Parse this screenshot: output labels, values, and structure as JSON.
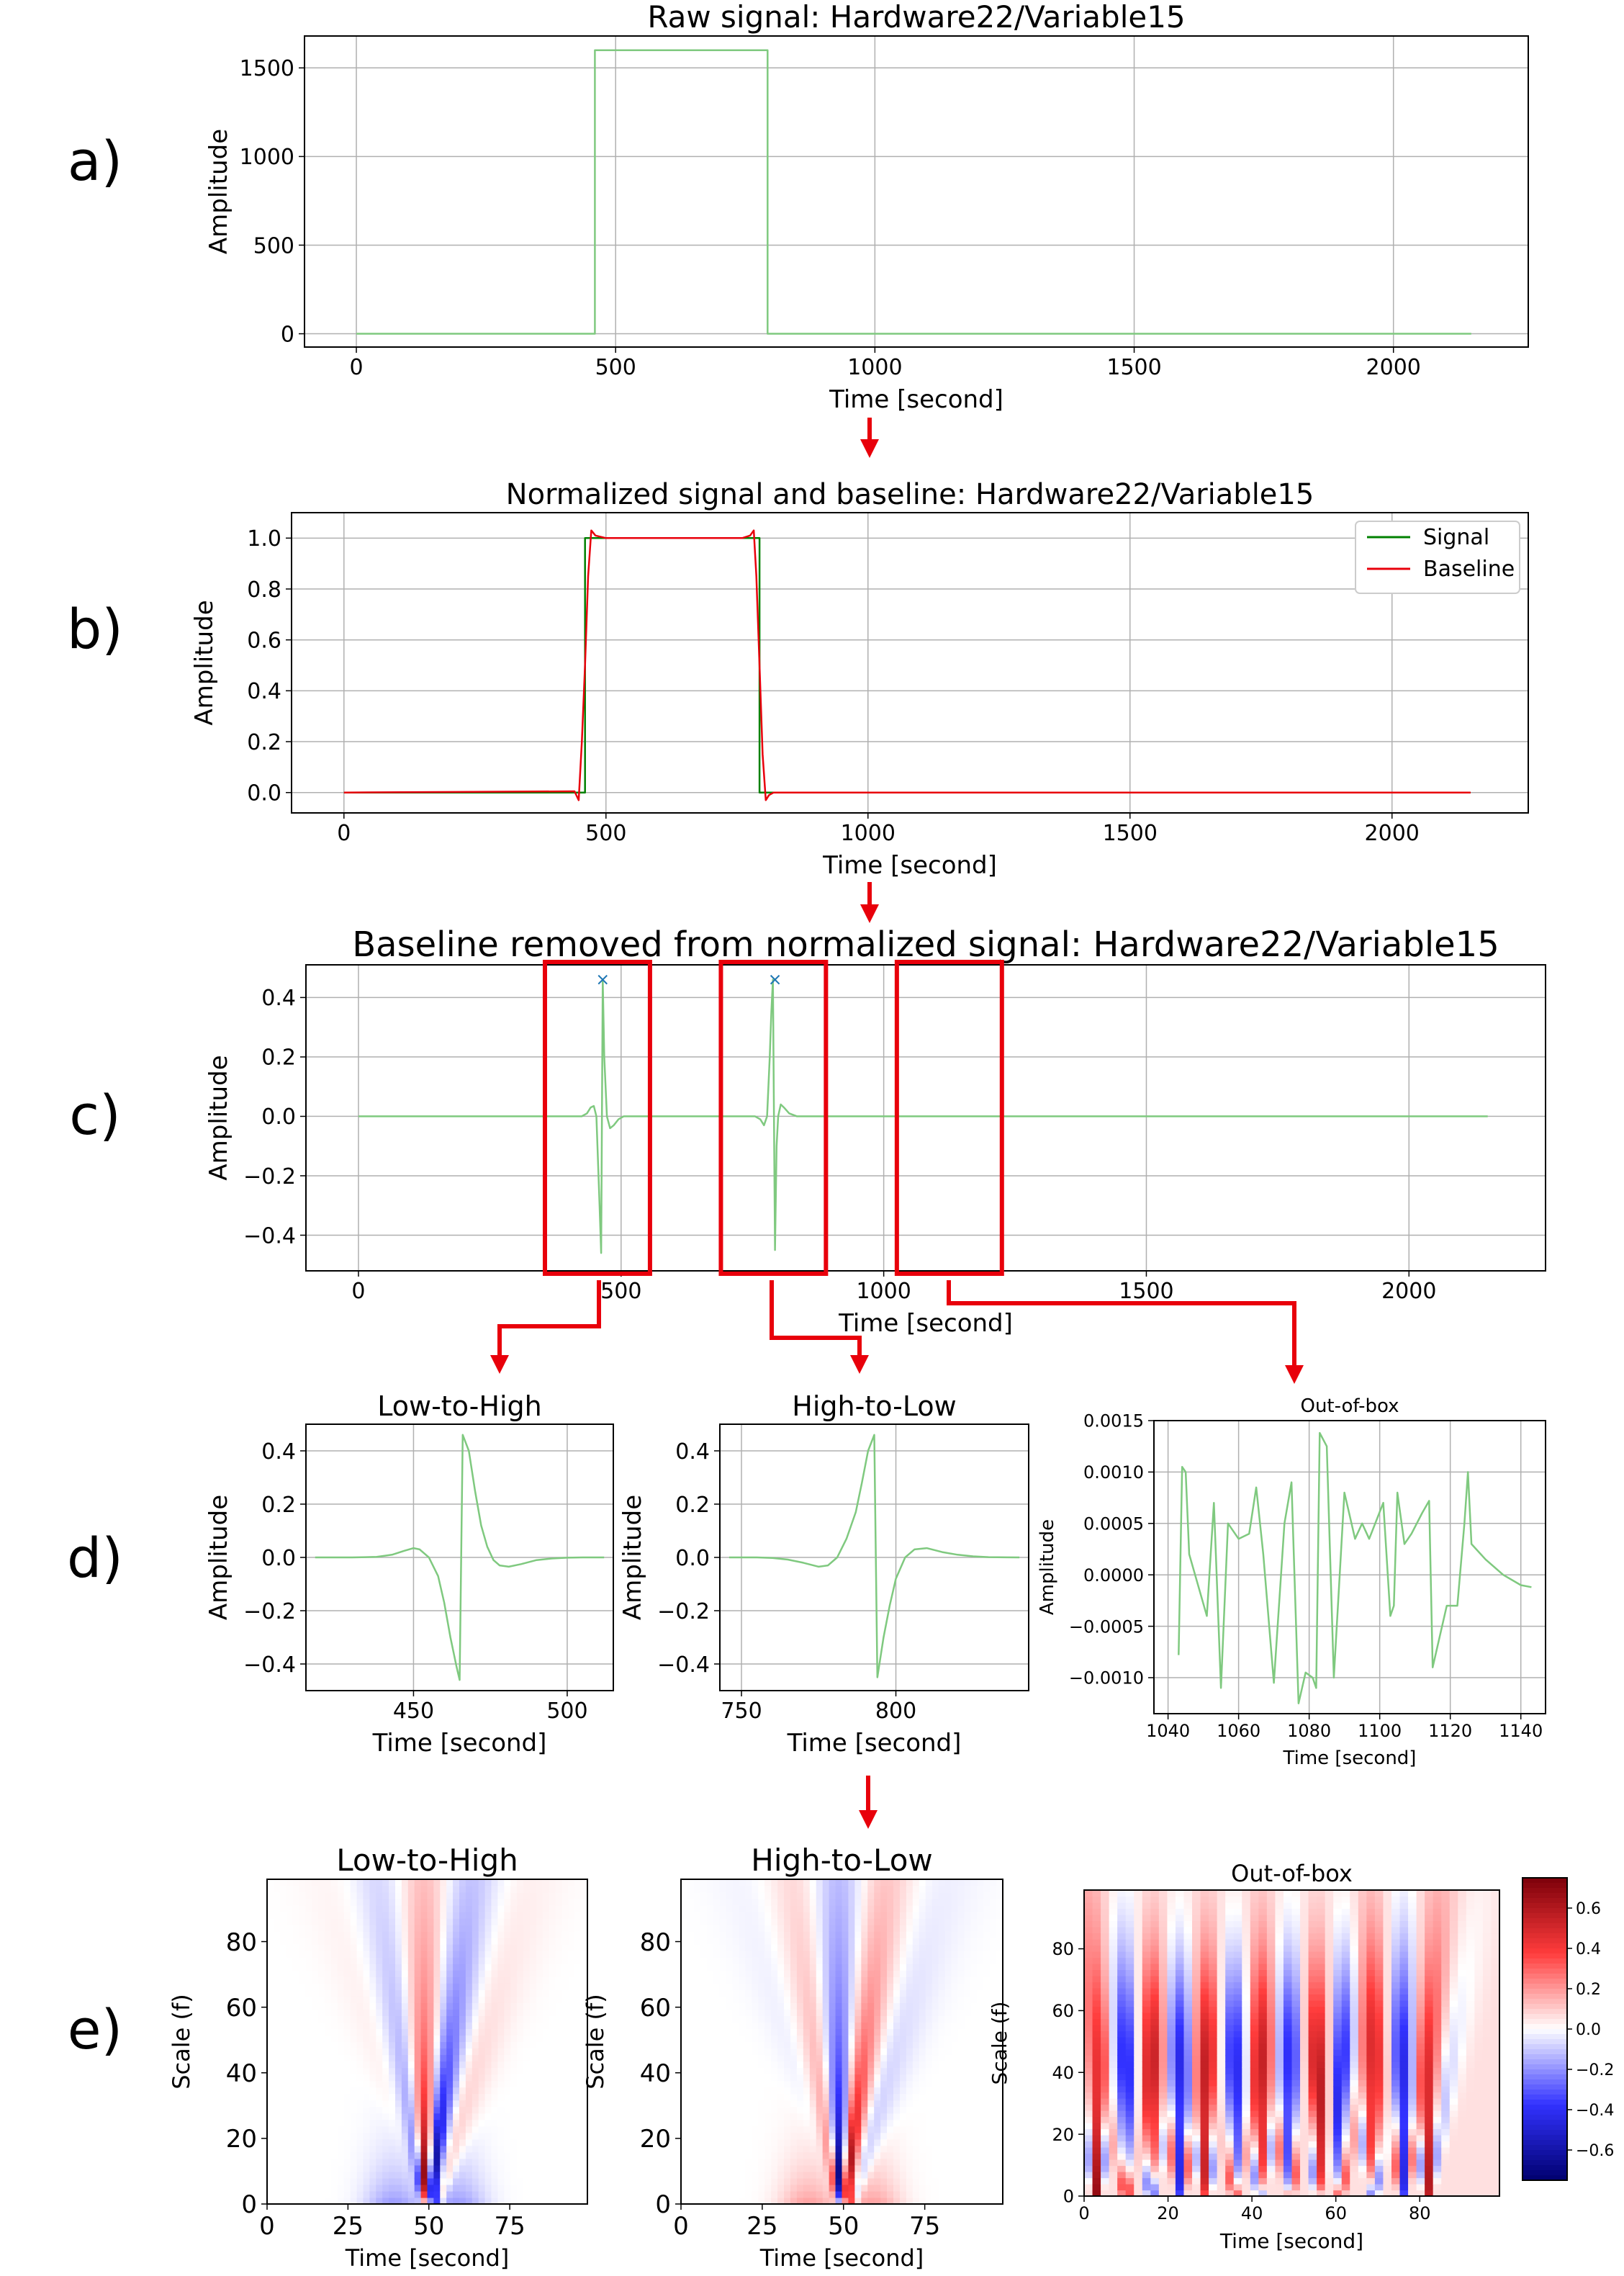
{
  "panel_labels": [
    "a)",
    "b)",
    "c)",
    "d)",
    "e)"
  ],
  "colors": {
    "signal_light": "#7fc97f",
    "signal_dark": "#008000",
    "baseline": "#e8000b",
    "annotation": "#e8000b",
    "peak_marker": "#1f77b4",
    "grid": "#b0b0b0"
  },
  "chart_data": [
    {
      "id": "a",
      "type": "line",
      "title": "Raw signal: Hardware22/Variable15",
      "xlabel": "Time [second]",
      "ylabel": "Amplitude",
      "xlim": [
        -100,
        2260
      ],
      "ylim": [
        -75,
        1680
      ],
      "xticks": [
        0,
        500,
        1000,
        1500,
        2000
      ],
      "yticks": [
        0,
        500,
        1000,
        1500
      ],
      "grid": true,
      "series": [
        {
          "color": "#7fc97f",
          "x": [
            0,
            460,
            460,
            793,
            793,
            2150
          ],
          "y": [
            0,
            0,
            1600,
            1600,
            0,
            0
          ]
        }
      ]
    },
    {
      "id": "b",
      "type": "line",
      "title": "Normalized signal and baseline: Hardware22/Variable15",
      "xlabel": "Time [second]",
      "ylabel": "Amplitude",
      "xlim": [
        -100,
        2260
      ],
      "ylim": [
        -0.08,
        1.1
      ],
      "xticks": [
        0,
        500,
        1000,
        1500,
        2000
      ],
      "yticks": [
        0.0,
        0.2,
        0.4,
        0.6,
        0.8,
        1.0
      ],
      "grid": true,
      "legend": "top-right",
      "series": [
        {
          "name": "Signal",
          "color": "#008000",
          "x": [
            0,
            460,
            460,
            793,
            793,
            2150
          ],
          "y": [
            0,
            0,
            1,
            1,
            0,
            0
          ]
        },
        {
          "name": "Baseline",
          "color": "#e8000b",
          "x": [
            0,
            440,
            448,
            454,
            460,
            466,
            472,
            480,
            500,
            760,
            775,
            782,
            787,
            793,
            799,
            805,
            811,
            820,
            2150
          ],
          "y": [
            0,
            0.005,
            -0.03,
            0.2,
            0.5,
            0.85,
            1.03,
            1.01,
            1.0,
            1.0,
            1.01,
            1.03,
            0.85,
            0.5,
            0.15,
            -0.03,
            -0.01,
            0.0,
            0.0
          ]
        }
      ]
    },
    {
      "id": "c",
      "type": "line",
      "title": "Baseline removed from normalized signal: Hardware22/Variable15",
      "xlabel": "Time [second]",
      "ylabel": "Amplitude",
      "xlim": [
        -100,
        2260
      ],
      "ylim": [
        -0.52,
        0.51
      ],
      "xticks": [
        0,
        500,
        1000,
        1500,
        2000
      ],
      "yticks": [
        -0.4,
        -0.2,
        0.0,
        0.2,
        0.4
      ],
      "grid": true,
      "peaks": {
        "x": [
          465,
          793
        ],
        "y": [
          0.46,
          0.46
        ]
      },
      "boxes": [
        [
          355,
          555
        ],
        [
          690,
          890
        ],
        [
          1025,
          1225
        ]
      ],
      "series": [
        {
          "color": "#7fc97f",
          "x": [
            0,
            425,
            435,
            442,
            448,
            453,
            459,
            462,
            465,
            468,
            473,
            479,
            486,
            495,
            505,
            755,
            765,
            772,
            778,
            783,
            786,
            789,
            793,
            796,
            799,
            804,
            810,
            820,
            835,
            2150
          ],
          "y": [
            0,
            0,
            0.01,
            0.03,
            0.035,
            0.0,
            -0.3,
            -0.46,
            0.46,
            0.2,
            0.0,
            -0.04,
            -0.03,
            -0.01,
            0,
            0,
            -0.01,
            -0.03,
            0.0,
            0.2,
            0.35,
            0.46,
            -0.45,
            -0.1,
            0.0,
            0.04,
            0.03,
            0.01,
            0,
            0
          ]
        }
      ]
    },
    {
      "id": "d1",
      "type": "line",
      "title": "Low-to-High",
      "xlabel": "Time [second]",
      "ylabel": "Amplitude",
      "xlim": [
        415,
        515
      ],
      "ylim": [
        -0.5,
        0.5
      ],
      "xticks": [
        450,
        500
      ],
      "yticks": [
        -0.4,
        -0.2,
        0.0,
        0.2,
        0.4
      ],
      "grid": true,
      "series": [
        {
          "color": "#7fc97f",
          "x": [
            418,
            430,
            438,
            443,
            447,
            450,
            452,
            455,
            458,
            460,
            462,
            464,
            465,
            466,
            468,
            470,
            472,
            474,
            476,
            478,
            481,
            485,
            490,
            495,
            500,
            505,
            512
          ],
          "y": [
            0,
            0,
            0.002,
            0.01,
            0.025,
            0.035,
            0.03,
            0.0,
            -0.07,
            -0.17,
            -0.3,
            -0.41,
            -0.46,
            0.46,
            0.4,
            0.25,
            0.12,
            0.04,
            -0.01,
            -0.03,
            -0.035,
            -0.025,
            -0.01,
            -0.004,
            -0.001,
            0,
            0
          ]
        }
      ]
    },
    {
      "id": "d2",
      "type": "line",
      "title": "High-to-Low",
      "xlabel": "Time [second]",
      "ylabel": "Amplitude",
      "xlim": [
        743,
        843
      ],
      "ylim": [
        -0.5,
        0.5
      ],
      "xticks": [
        750,
        800
      ],
      "yticks": [
        -0.4,
        -0.2,
        0.0,
        0.2,
        0.4
      ],
      "grid": true,
      "series": [
        {
          "color": "#7fc97f",
          "x": [
            746,
            755,
            760,
            765,
            770,
            775,
            778,
            781,
            784,
            787,
            789,
            791,
            793,
            794,
            796,
            798,
            800,
            803,
            806,
            810,
            815,
            820,
            825,
            830,
            840
          ],
          "y": [
            0,
            0,
            -0.002,
            -0.008,
            -0.02,
            -0.035,
            -0.03,
            0.0,
            0.07,
            0.17,
            0.28,
            0.4,
            0.46,
            -0.45,
            -0.3,
            -0.18,
            -0.08,
            0.0,
            0.03,
            0.035,
            0.02,
            0.01,
            0.004,
            0.001,
            0
          ]
        }
      ]
    },
    {
      "id": "d3",
      "type": "line",
      "title": "Out-of-box",
      "xlabel": "Time [second]",
      "ylabel": "Amplitude",
      "xlim": [
        1036,
        1147
      ],
      "ylim": [
        -0.00135,
        0.0015
      ],
      "xticks": [
        1040,
        1060,
        1080,
        1100,
        1120,
        1140
      ],
      "yticks": [
        -0.001,
        -0.0005,
        0.0,
        0.0005,
        0.001,
        0.0015
      ],
      "tick_labels": [
        "−0.0010",
        "−0.0005",
        "0.0000",
        "0.0005",
        "0.0010",
        "0.0015"
      ],
      "grid": true,
      "series": [
        {
          "color": "#7fc97f",
          "x": [
            1043,
            1044,
            1045,
            1046,
            1051,
            1053,
            1055,
            1057,
            1060,
            1063,
            1065,
            1067,
            1070,
            1073,
            1075,
            1077,
            1079,
            1081,
            1082,
            1083,
            1085,
            1087,
            1090,
            1093,
            1095,
            1097,
            1101,
            1103,
            1104,
            1105,
            1107,
            1109,
            1112,
            1114,
            1115,
            1117,
            1119,
            1122,
            1124,
            1125,
            1126,
            1130,
            1135,
            1140,
            1143
          ],
          "y": [
            -0.00078,
            0.00105,
            0.001,
            0.0002,
            -0.0004,
            0.0007,
            -0.0011,
            0.0005,
            0.00035,
            0.0004,
            0.00085,
            0.0002,
            -0.00105,
            0.0005,
            0.0009,
            -0.00125,
            -0.00095,
            -0.001,
            -0.0011,
            0.00138,
            0.00125,
            -0.001,
            0.0008,
            0.00035,
            0.0005,
            0.00035,
            0.0007,
            -0.0004,
            -0.0003,
            0.0008,
            0.0003,
            0.0004,
            0.0006,
            0.00072,
            -0.0009,
            -0.0006,
            -0.0003,
            -0.0003,
            0.0005,
            0.001,
            0.0003,
            0.00015,
            0.0,
            -0.0001,
            -0.00012
          ]
        }
      ]
    },
    {
      "id": "e1",
      "type": "heatmap",
      "title": "Low-to-High",
      "xlabel": "Time [second]",
      "ylabel": "Scale (f)",
      "xlim": [
        0,
        99
      ],
      "ylim": [
        0,
        99
      ],
      "xticks": [
        0,
        25,
        50,
        75
      ],
      "yticks": [
        0,
        20,
        40,
        60,
        80
      ],
      "pattern": {
        "center_x": 49,
        "sign": 1
      }
    },
    {
      "id": "e2",
      "type": "heatmap",
      "title": "High-to-Low",
      "xlabel": "Time [second]",
      "ylabel": "Scale (f)",
      "xlim": [
        0,
        99
      ],
      "ylim": [
        0,
        99
      ],
      "xticks": [
        0,
        25,
        50,
        75
      ],
      "yticks": [
        0,
        20,
        40,
        60,
        80
      ],
      "pattern": {
        "center_x": 49,
        "sign": -1
      }
    },
    {
      "id": "e3",
      "type": "heatmap",
      "title": "Out-of-box",
      "xlabel": "Time [second]",
      "ylabel": "Scale (f)",
      "xlim": [
        0,
        99
      ],
      "ylim": [
        0,
        99
      ],
      "xticks": [
        0,
        20,
        40,
        60,
        80
      ],
      "yticks": [
        0,
        20,
        40,
        60,
        80
      ],
      "pattern": {
        "centers": [
          3,
          10,
          16,
          23,
          29,
          36,
          42,
          49,
          56,
          61,
          69,
          76,
          82
        ],
        "signs": [
          1,
          -1,
          1,
          -1,
          1,
          -1,
          1,
          -1,
          1,
          -1,
          1,
          -1,
          1
        ]
      },
      "colorbar": {
        "min": -0.75,
        "max": 0.75,
        "ticks": [
          0.6,
          0.4,
          0.2,
          0.0,
          -0.2,
          -0.4,
          -0.6
        ],
        "tick_labels": [
          "0.6",
          "0.4",
          "0.2",
          "0.0",
          "−0.2",
          "−0.4",
          "−0.6"
        ]
      }
    }
  ]
}
